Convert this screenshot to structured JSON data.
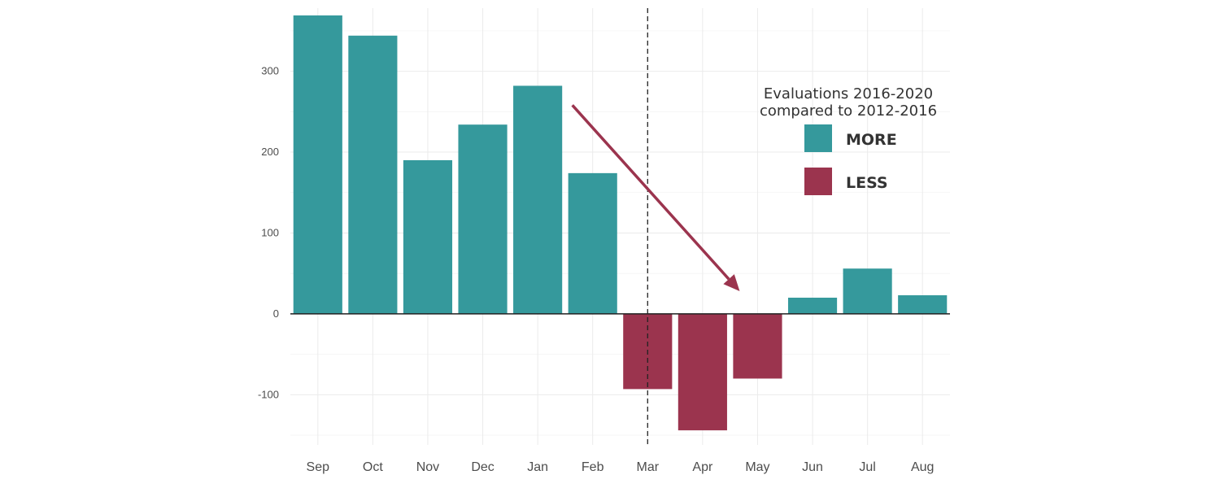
{
  "chart_data": {
    "type": "bar",
    "categories": [
      "Sep",
      "Oct",
      "Nov",
      "Dec",
      "Jan",
      "Feb",
      "Mar",
      "Apr",
      "May",
      "Jun",
      "Jul",
      "Aug"
    ],
    "values": [
      369,
      344,
      190,
      234,
      282,
      174,
      -93,
      -144,
      -80,
      20,
      56,
      23
    ],
    "ylim": [
      -162,
      378
    ],
    "yticks": [
      -100,
      0,
      100,
      200,
      300
    ],
    "ytick_labels": [
      "-100",
      "0",
      "100",
      "200",
      "300"
    ],
    "grid": true,
    "vline_after_category": "Mar",
    "colors": {
      "positive": "#35999c",
      "negative": "#9b344e",
      "arrow": "#9b344e"
    },
    "legend": {
      "title_line1": "Evaluations 2016-2020",
      "title_line2": "compared to 2012-2016",
      "items": [
        {
          "label": "MORE",
          "color": "#35999c"
        },
        {
          "label": "LESS",
          "color": "#9b344e"
        }
      ],
      "position": "top-right"
    },
    "annotation_arrow": {
      "from_category": "Feb",
      "from_value": 258,
      "to_category": "May",
      "to_value": 28
    }
  }
}
